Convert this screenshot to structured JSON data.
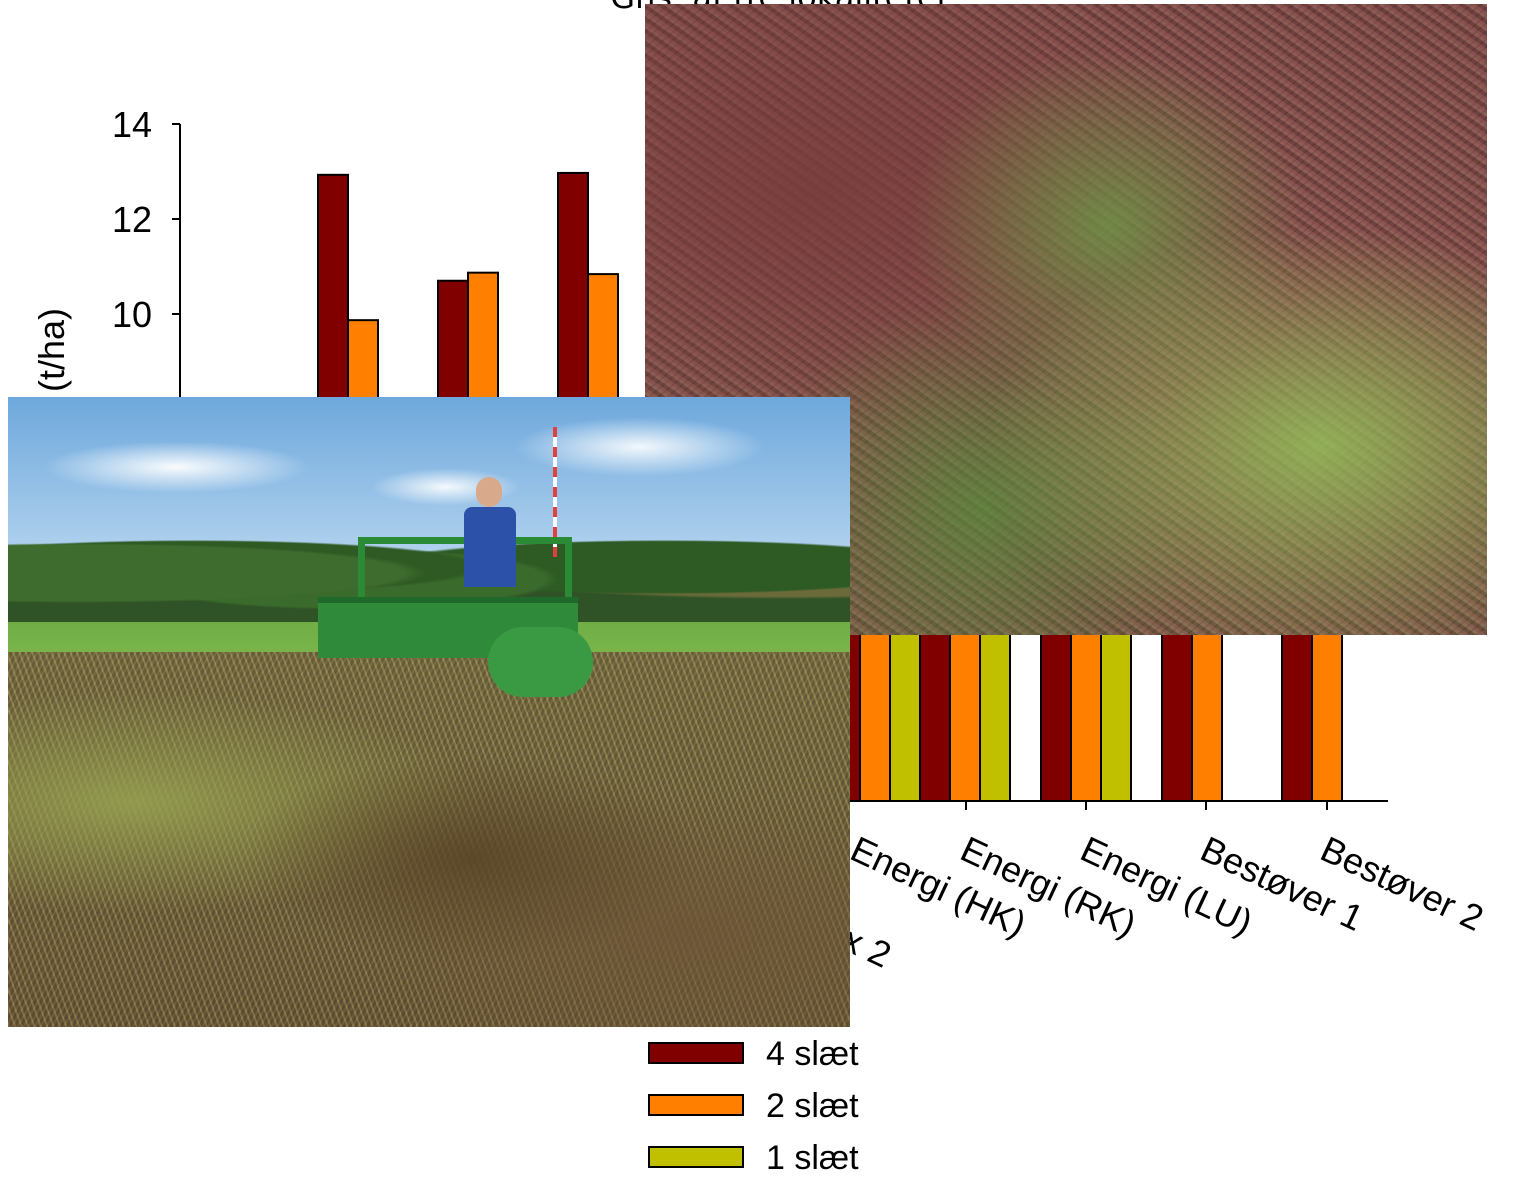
{
  "chart_data": {
    "type": "bar",
    "title": "Gns. af tre lokaliteter",
    "ylabel": "(t/ha)",
    "xlabel": "",
    "ylim": [
      0,
      15.2
    ],
    "yticks": [
      10,
      12,
      14
    ],
    "categories": [
      "x 2",
      "Energi (HK)",
      "Energi (RK)",
      "Energi (LU)",
      "Bestøver 1",
      "Bestøver 2"
    ],
    "series": [
      {
        "name": "4 slæt",
        "color": "#800000",
        "values": [
          12.93,
          10.7,
          12.97,
          null,
          null,
          null
        ]
      },
      {
        "name": "2 slæt",
        "color": "#ff8000",
        "values": [
          9.87,
          10.87,
          10.84,
          null,
          null,
          null
        ]
      },
      {
        "name": "1 slæt",
        "color": "#c0c000",
        "values": [
          null,
          null,
          null,
          null,
          null,
          null
        ]
      }
    ],
    "legend_position": "bottom"
  },
  "photos": [
    {
      "name": "field-photo"
    },
    {
      "name": "tractor-photo"
    }
  ]
}
